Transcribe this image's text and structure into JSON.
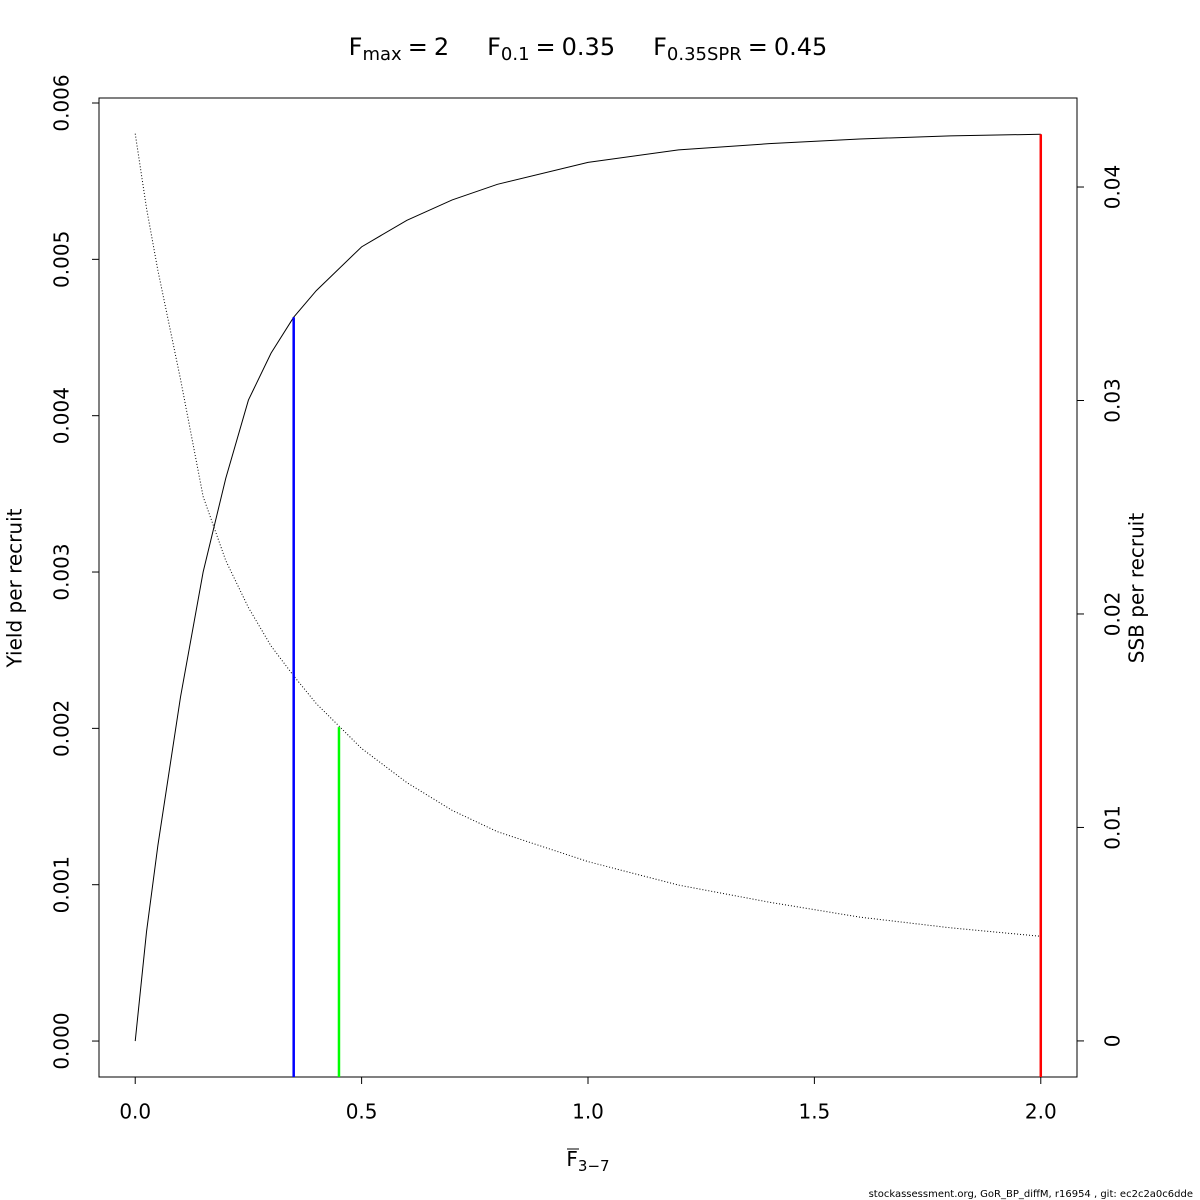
{
  "chart_data": {
    "type": "line",
    "ref_lines": [
      {
        "label": "F",
        "subscript": "max",
        "relation": "=",
        "x": 2,
        "top": 0.0058,
        "color": "#ff0000"
      },
      {
        "label": "F",
        "subscript": "0.1",
        "relation": "=",
        "x": 0.35,
        "top": 0.00463,
        "color": "#0000ff"
      },
      {
        "label": "F",
        "subscript": "0.35SPR",
        "relation": "=",
        "x": 0.45,
        "top": 0.0147,
        "axis": "y2",
        "color": "#00ff00"
      }
    ],
    "x_label": {
      "label": "F",
      "subscript": "3−7"
    },
    "y_label": "Yield per recruit",
    "y2_label": "SSB per recruit",
    "footer": "stockassessment.org, GoR_BP_diffM, r16954 , git: ec2c2a0c6dde",
    "x": [
      0,
      0.025,
      0.05,
      0.1,
      0.15,
      0.2,
      0.25,
      0.3,
      0.35,
      0.4,
      0.5,
      0.6,
      0.7,
      0.8,
      1.0,
      1.2,
      1.4,
      1.6,
      1.8,
      2.0
    ],
    "series": [
      {
        "color": "#000000",
        "style": "solid",
        "values": [
          0,
          0.0007,
          0.00125,
          0.0022,
          0.003,
          0.0036,
          0.0041,
          0.0044,
          0.00463,
          0.0048,
          0.00508,
          0.00525,
          0.00538,
          0.00548,
          0.00562,
          0.0057,
          0.00574,
          0.00577,
          0.00579,
          0.0058
        ]
      },
      {
        "color": "#000000",
        "style": "dotted",
        "axis": "y2",
        "values": [
          0.0425,
          0.039,
          0.0361,
          0.031,
          0.0255,
          0.0225,
          0.0203,
          0.0185,
          0.0171,
          0.0158,
          0.0137,
          0.0121,
          0.0108,
          0.0098,
          0.0084,
          0.0073,
          0.0065,
          0.0058,
          0.0053,
          0.0049
        ]
      }
    ],
    "xlim": [
      -0.08,
      2.08
    ],
    "xticks": [
      {
        "value": 0,
        "label": "0.0"
      },
      {
        "value": 0.5,
        "label": "0.5"
      },
      {
        "value": 1,
        "label": "1.0"
      },
      {
        "value": 1.5,
        "label": "1.5"
      },
      {
        "value": 2,
        "label": "2.0"
      }
    ],
    "ylim": [
      -0.00023,
      0.006032
    ],
    "yticks": [
      {
        "value": 0,
        "label": "0.000"
      },
      {
        "value": 0.001,
        "label": "0.001"
      },
      {
        "value": 0.002,
        "label": "0.002"
      },
      {
        "value": 0.003,
        "label": "0.003"
      },
      {
        "value": 0.004,
        "label": "0.004"
      },
      {
        "value": 0.005,
        "label": "0.005"
      },
      {
        "value": 0.006,
        "label": "0.006"
      }
    ],
    "y2lim": [
      -0.00169,
      0.04417
    ],
    "y2ticks": [
      0,
      0.01,
      0.02,
      0.03,
      0.04
    ]
  }
}
